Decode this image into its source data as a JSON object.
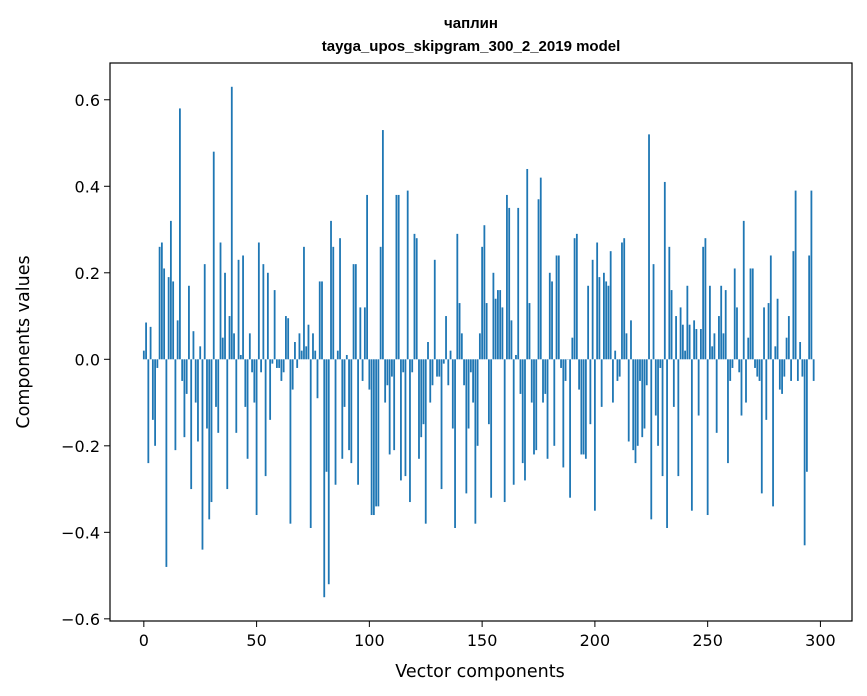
{
  "chart_data": {
    "type": "bar",
    "title_line1": "чаплин",
    "title_line2": "tayga_upos_skipgram_300_2_2019 model",
    "xlabel": "Vector components",
    "ylabel": "Components values",
    "xlim": [
      -15,
      314
    ],
    "ylim": [
      -0.605,
      0.685
    ],
    "xticks": [
      0,
      50,
      100,
      150,
      200,
      250,
      300
    ],
    "yticks": [
      -0.6,
      -0.4,
      -0.2,
      0.0,
      0.2,
      0.4,
      0.6
    ],
    "ytick_labels": [
      "−0.6",
      "−0.4",
      "−0.2",
      "0.0",
      "0.2",
      "0.4",
      "0.6"
    ],
    "bar_color": "#1f77b4",
    "grid": false,
    "values": [
      0.02,
      0.085,
      -0.24,
      0.075,
      -0.14,
      -0.2,
      -0.02,
      0.26,
      0.27,
      0.21,
      -0.48,
      0.19,
      0.32,
      0.18,
      -0.21,
      0.09,
      0.58,
      -0.05,
      -0.18,
      -0.08,
      0.17,
      -0.3,
      0.065,
      -0.1,
      -0.19,
      0.03,
      -0.44,
      0.22,
      -0.16,
      -0.37,
      -0.33,
      0.48,
      -0.11,
      -0.17,
      0.27,
      0.05,
      0.2,
      -0.3,
      0.1,
      0.63,
      0.06,
      -0.17,
      0.23,
      0.01,
      0.24,
      -0.11,
      -0.23,
      0.06,
      -0.03,
      -0.1,
      -0.36,
      0.27,
      -0.03,
      0.22,
      -0.27,
      0.2,
      -0.14,
      -0.01,
      0.16,
      -0.02,
      -0.02,
      -0.05,
      -0.03,
      0.1,
      0.095,
      -0.38,
      -0.07,
      0.04,
      -0.02,
      0.06,
      0.02,
      0.26,
      0.03,
      0.08,
      -0.39,
      0.06,
      0.02,
      -0.09,
      0.18,
      0.18,
      -0.55,
      -0.26,
      -0.52,
      0.32,
      0.26,
      -0.29,
      0.02,
      0.28,
      -0.23,
      -0.11,
      0.01,
      -0.21,
      -0.24,
      0.22,
      0.22,
      -0.29,
      0.12,
      -0.05,
      0.12,
      0.38,
      -0.07,
      -0.36,
      -0.36,
      -0.34,
      -0.34,
      0.26,
      0.53,
      -0.1,
      -0.06,
      -0.22,
      -0.04,
      -0.21,
      0.38,
      0.38,
      -0.28,
      -0.03,
      -0.27,
      0.39,
      -0.33,
      -0.03,
      0.29,
      0.28,
      -0.23,
      -0.18,
      -0.15,
      -0.38,
      0.04,
      -0.1,
      -0.06,
      0.23,
      -0.04,
      -0.04,
      -0.3,
      -0.01,
      0.1,
      -0.06,
      0.02,
      -0.16,
      -0.39,
      0.29,
      0.13,
      0.06,
      -0.06,
      -0.31,
      -0.16,
      -0.03,
      -0.1,
      -0.38,
      -0.2,
      0.06,
      0.26,
      0.31,
      0.13,
      -0.15,
      -0.32,
      0.2,
      0.14,
      0.16,
      0.16,
      0.12,
      -0.33,
      0.38,
      0.35,
      0.09,
      -0.29,
      0.01,
      0.35,
      -0.08,
      -0.24,
      -0.28,
      0.44,
      0.13,
      -0.1,
      -0.22,
      -0.21,
      0.37,
      0.42,
      -0.1,
      -0.08,
      -0.23,
      0.2,
      0.18,
      -0.2,
      0.24,
      0.24,
      -0.02,
      -0.25,
      -0.05,
      0.0,
      -0.32,
      0.05,
      0.28,
      0.29,
      -0.07,
      -0.22,
      -0.22,
      -0.23,
      0.17,
      -0.15,
      0.23,
      -0.35,
      0.27,
      0.19,
      -0.11,
      0.2,
      0.18,
      0.17,
      0.25,
      -0.1,
      0.02,
      -0.05,
      -0.04,
      0.27,
      0.28,
      0.06,
      -0.19,
      0.09,
      -0.21,
      -0.24,
      -0.2,
      -0.05,
      -0.18,
      -0.16,
      -0.06,
      0.52,
      -0.37,
      0.22,
      -0.13,
      -0.2,
      -0.02,
      -0.27,
      0.41,
      -0.39,
      0.26,
      0.16,
      -0.11,
      0.1,
      -0.27,
      0.12,
      0.08,
      0.02,
      0.17,
      0.08,
      -0.35,
      0.09,
      0.07,
      -0.13,
      0.07,
      0.26,
      0.28,
      -0.36,
      0.17,
      0.03,
      0.06,
      -0.17,
      0.1,
      0.17,
      0.06,
      0.16,
      -0.24,
      -0.05,
      -0.02,
      0.21,
      0.12,
      -0.03,
      -0.13,
      0.32,
      -0.1,
      0.05,
      0.21,
      0.21,
      -0.02,
      -0.04,
      -0.05,
      -0.31,
      0.12,
      -0.14,
      0.13,
      0.24,
      -0.34,
      0.03,
      0.14,
      -0.07,
      -0.08,
      -0.04,
      0.05,
      0.1,
      -0.05,
      0.25,
      0.39,
      -0.05,
      0.04,
      -0.04,
      -0.43,
      -0.26,
      0.24,
      0.39,
      -0.05
    ]
  }
}
